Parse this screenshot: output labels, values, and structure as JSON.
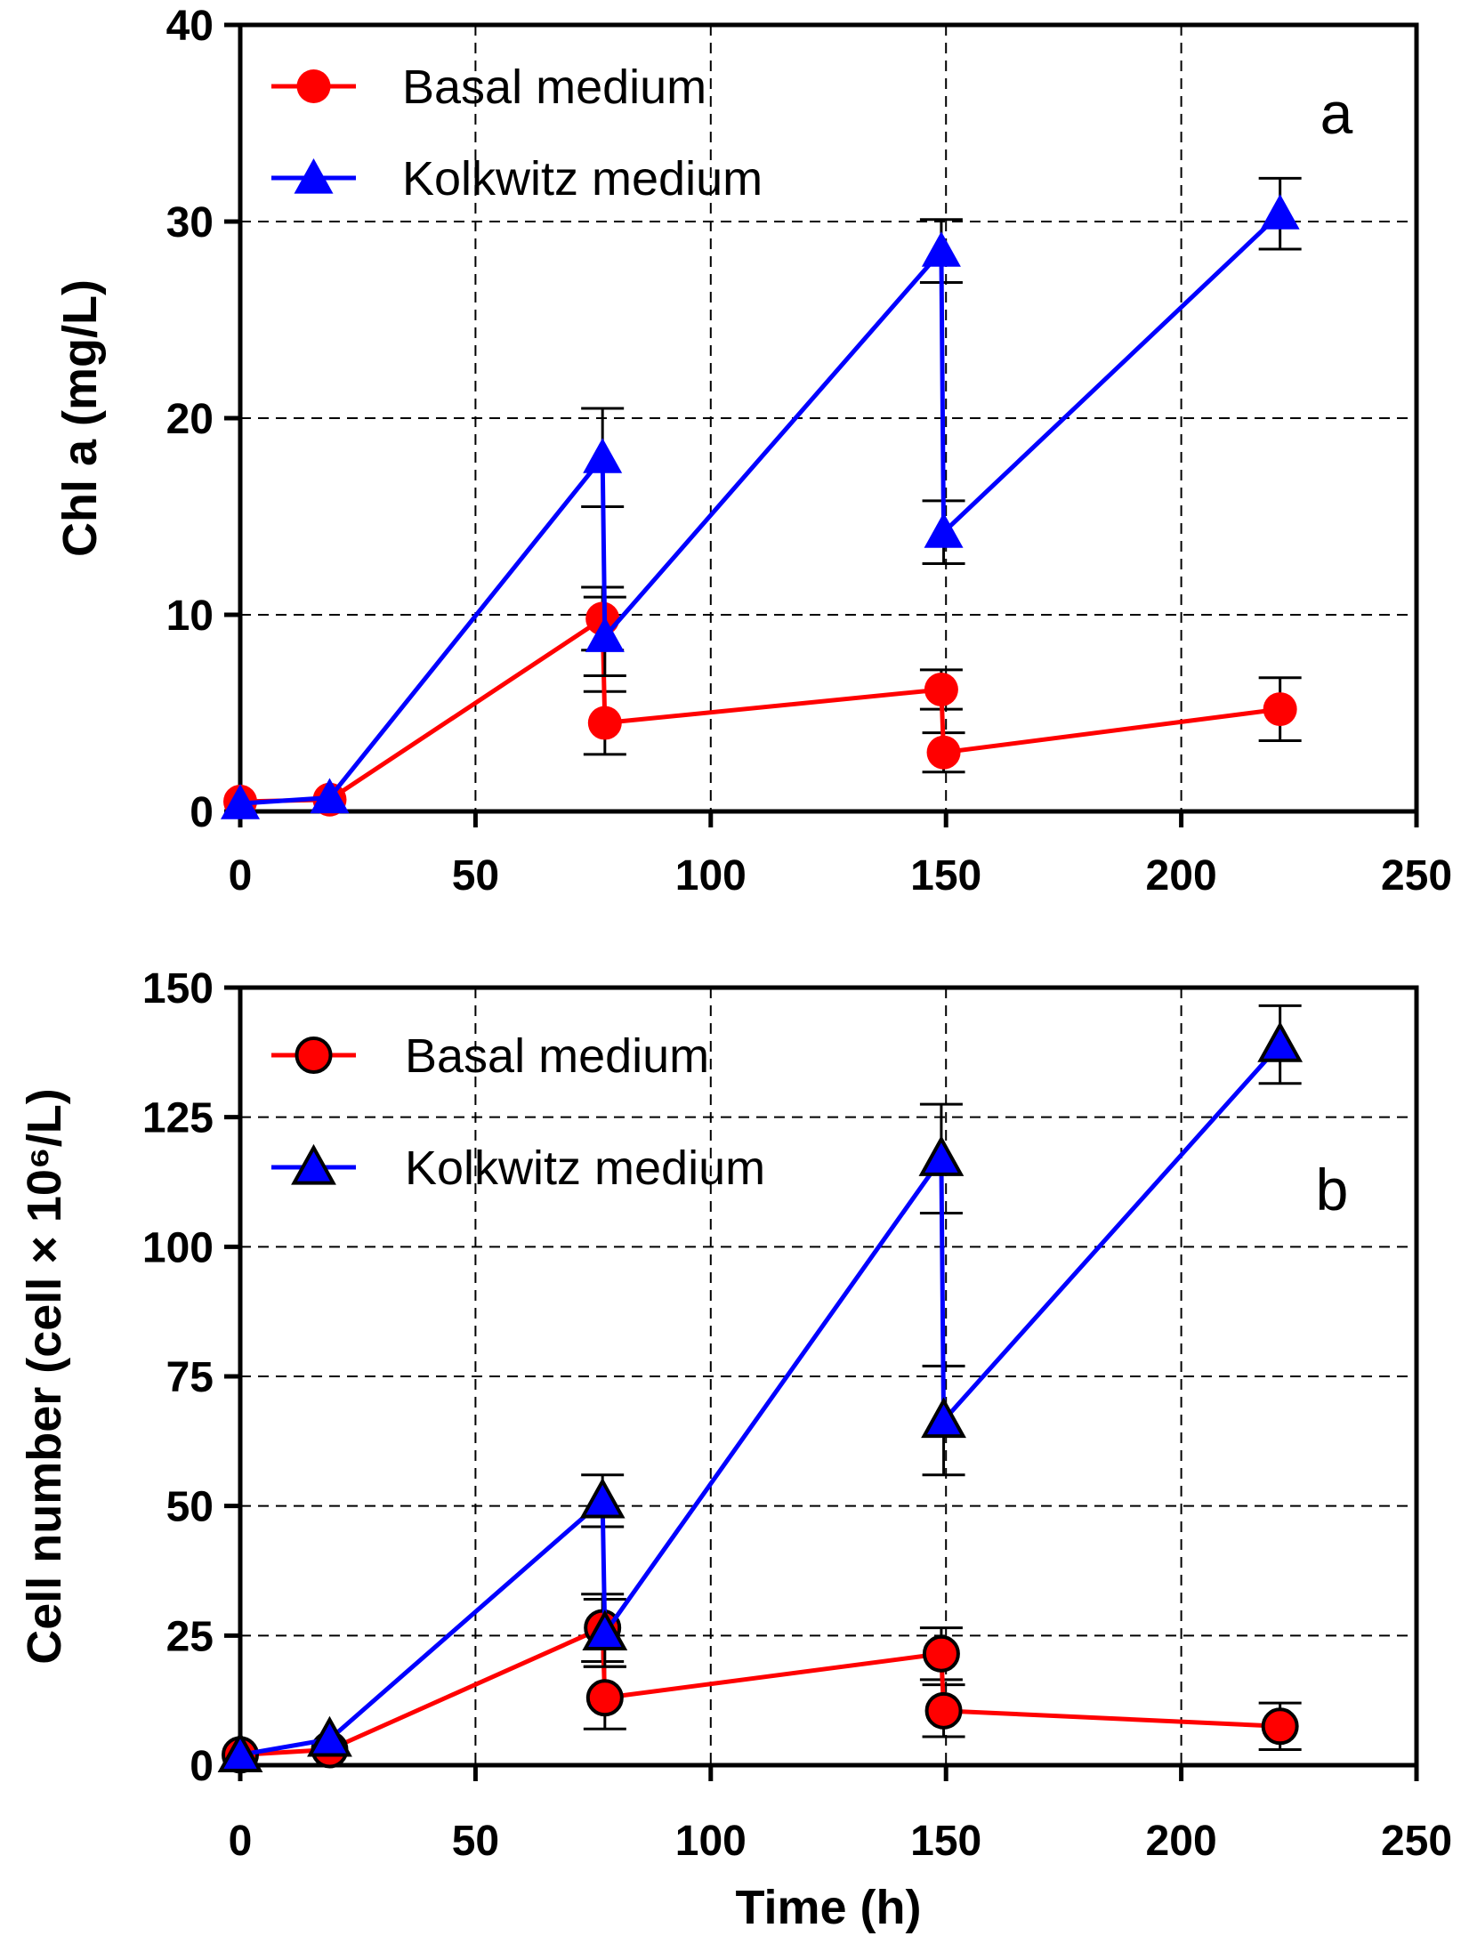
{
  "colors": {
    "basal": "#ff0000",
    "kolkwitz": "#0000ff",
    "axis": "#000000"
  },
  "chart_data": [
    {
      "type": "line",
      "panel_label": "a",
      "title": "",
      "xlabel": "",
      "ylabel": "Chl a (mg/L)",
      "xlim": [
        0,
        250
      ],
      "ylim": [
        0,
        40
      ],
      "x_ticks": [
        0,
        50,
        100,
        150,
        200,
        250
      ],
      "y_ticks": [
        0,
        10,
        20,
        30,
        40
      ],
      "grid": true,
      "legend_position": "top-left",
      "series": [
        {
          "name": "Basal medium",
          "color": "#ff0000",
          "marker": "circle",
          "points": [
            {
              "x": 0,
              "y": 0.5,
              "err": 0
            },
            {
              "x": 19,
              "y": 0.6,
              "err": 0
            },
            {
              "x": 77,
              "y": 9.8,
              "err": 1.6
            },
            {
              "x": 77.5,
              "y": 4.5,
              "err": 1.6
            },
            {
              "x": 149,
              "y": 6.2,
              "err": 1.0
            },
            {
              "x": 149.5,
              "y": 3.0,
              "err": 1.0
            },
            {
              "x": 221,
              "y": 5.2,
              "err": 1.6
            }
          ]
        },
        {
          "name": "Kolkwitz medium",
          "color": "#0000ff",
          "marker": "triangle",
          "points": [
            {
              "x": 0,
              "y": 0.4,
              "err": 0
            },
            {
              "x": 19,
              "y": 0.7,
              "err": 0
            },
            {
              "x": 77,
              "y": 18.0,
              "err": 2.5
            },
            {
              "x": 77.5,
              "y": 8.9,
              "err": 2.0
            },
            {
              "x": 149,
              "y": 28.5,
              "err": 1.6
            },
            {
              "x": 149.5,
              "y": 14.2,
              "err": 1.6
            },
            {
              "x": 221,
              "y": 30.4,
              "err": 1.8
            }
          ]
        }
      ]
    },
    {
      "type": "line",
      "panel_label": "b",
      "title": "",
      "xlabel": "Time (h)",
      "ylabel": "Cell number (cell × 10⁶/L)",
      "xlim": [
        0,
        250
      ],
      "ylim": [
        0,
        150
      ],
      "x_ticks": [
        0,
        50,
        100,
        150,
        200,
        250
      ],
      "y_ticks": [
        0,
        25,
        50,
        75,
        100,
        125,
        150
      ],
      "grid": true,
      "legend_position": "top-left",
      "series": [
        {
          "name": "Basal medium",
          "color": "#ff0000",
          "marker": "circle",
          "points": [
            {
              "x": 0,
              "y": 2.0,
              "err": 0
            },
            {
              "x": 19,
              "y": 3.0,
              "err": 0
            },
            {
              "x": 77,
              "y": 26.5,
              "err": 6.5
            },
            {
              "x": 77.5,
              "y": 13.0,
              "err": 6.0
            },
            {
              "x": 149,
              "y": 21.5,
              "err": 5.0
            },
            {
              "x": 149.5,
              "y": 10.5,
              "err": 5.0
            },
            {
              "x": 221,
              "y": 7.5,
              "err": 4.5
            }
          ]
        },
        {
          "name": "Kolkwitz medium",
          "color": "#0000ff",
          "marker": "triangle",
          "points": [
            {
              "x": 0,
              "y": 2.0,
              "err": 0
            },
            {
              "x": 19,
              "y": 5.0,
              "err": 0
            },
            {
              "x": 77,
              "y": 51.0,
              "err": 5.0
            },
            {
              "x": 77.5,
              "y": 25.5,
              "err": 6.5
            },
            {
              "x": 149,
              "y": 117.0,
              "err": 10.5
            },
            {
              "x": 149.5,
              "y": 66.5,
              "err": 10.5
            },
            {
              "x": 221,
              "y": 139.0,
              "err": 7.5
            }
          ]
        }
      ]
    }
  ]
}
